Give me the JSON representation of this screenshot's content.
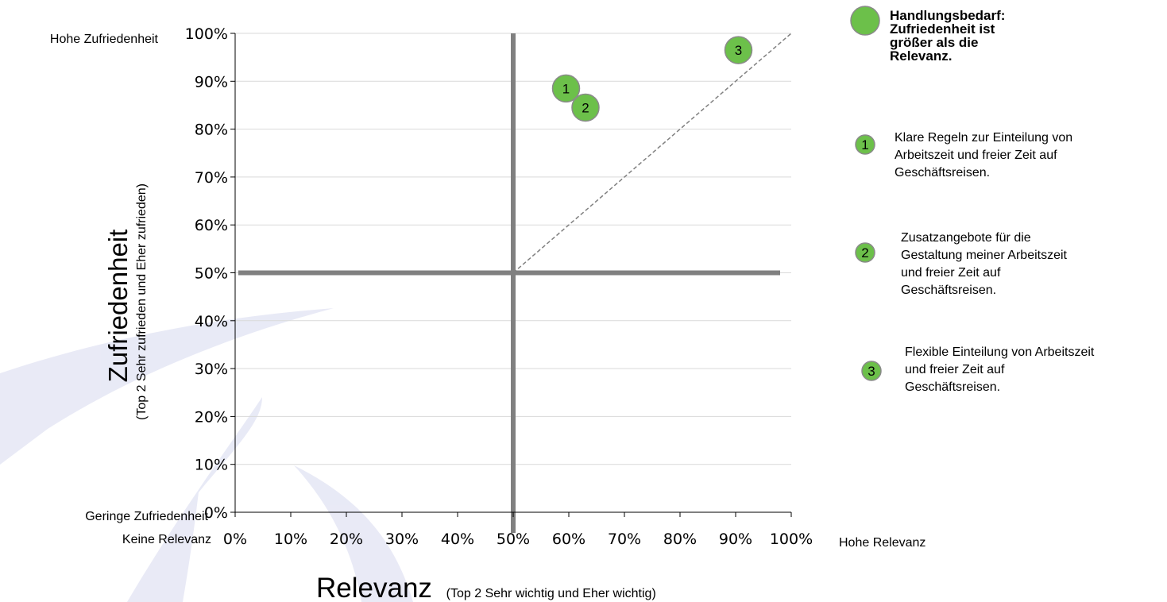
{
  "chart_data": {
    "type": "scatter",
    "x_axis": {
      "label": "Relevanz",
      "sublabel": "(Top 2 Sehr wichtig und Eher wichtig)",
      "range": [
        0,
        100
      ],
      "ticks": [
        "0%",
        "10%",
        "20%",
        "30%",
        "40%",
        "50%",
        "60%",
        "70%",
        "80%",
        "90%",
        "100%"
      ],
      "low_label": "Keine Relevanz",
      "high_label": "Hohe Relevanz"
    },
    "y_axis": {
      "label": "Zufriedenheit",
      "sublabel": "(Top 2 Sehr zufrieden und Eher zufrieden)",
      "range": [
        0,
        100
      ],
      "ticks": [
        "0%",
        "10%",
        "20%",
        "30%",
        "40%",
        "50%",
        "60%",
        "70%",
        "80%",
        "90%",
        "100%"
      ],
      "low_label": "Geringe Zufriedenheit",
      "high_label": "Hohe Zufriedenheit"
    },
    "grid": true,
    "quadrant_lines": {
      "x": 50,
      "y": 50
    },
    "diagonal_reference": {
      "from": [
        50,
        50
      ],
      "to": [
        100,
        100
      ]
    },
    "points": [
      {
        "id": "1",
        "x": 59.5,
        "y": 88.5
      },
      {
        "id": "2",
        "x": 63,
        "y": 84.5
      },
      {
        "id": "3",
        "x": 90.5,
        "y": 96.5
      }
    ],
    "legend": {
      "position": "right",
      "header": [
        "Handlungsbedarf:",
        "Zufriedenheit ist",
        "größer als die",
        "Relevanz."
      ],
      "items": [
        {
          "id": "1",
          "lines": [
            "Klare Regeln zur Einteilung von",
            "Arbeitszeit und freier Zeit auf",
            "Geschäftsreisen."
          ]
        },
        {
          "id": "2",
          "lines": [
            "Zusatzangebote für die",
            "Gestaltung meiner Arbeitszeit",
            "und freier Zeit auf",
            "Geschäftsreisen."
          ]
        },
        {
          "id": "3",
          "lines": [
            "Flexible Einteilung von Arbeitszeit",
            "und freier Zeit auf",
            "Geschäftsreisen."
          ]
        }
      ]
    }
  },
  "colors": {
    "bubble_fill": "#6cc04a",
    "bubble_stroke": "#8a8a8a",
    "quadrant_line": "#808080",
    "grid": "#d9d9d9",
    "axis": "#000000",
    "diagonal": "#808080",
    "watermark": "#d7d9ef"
  }
}
